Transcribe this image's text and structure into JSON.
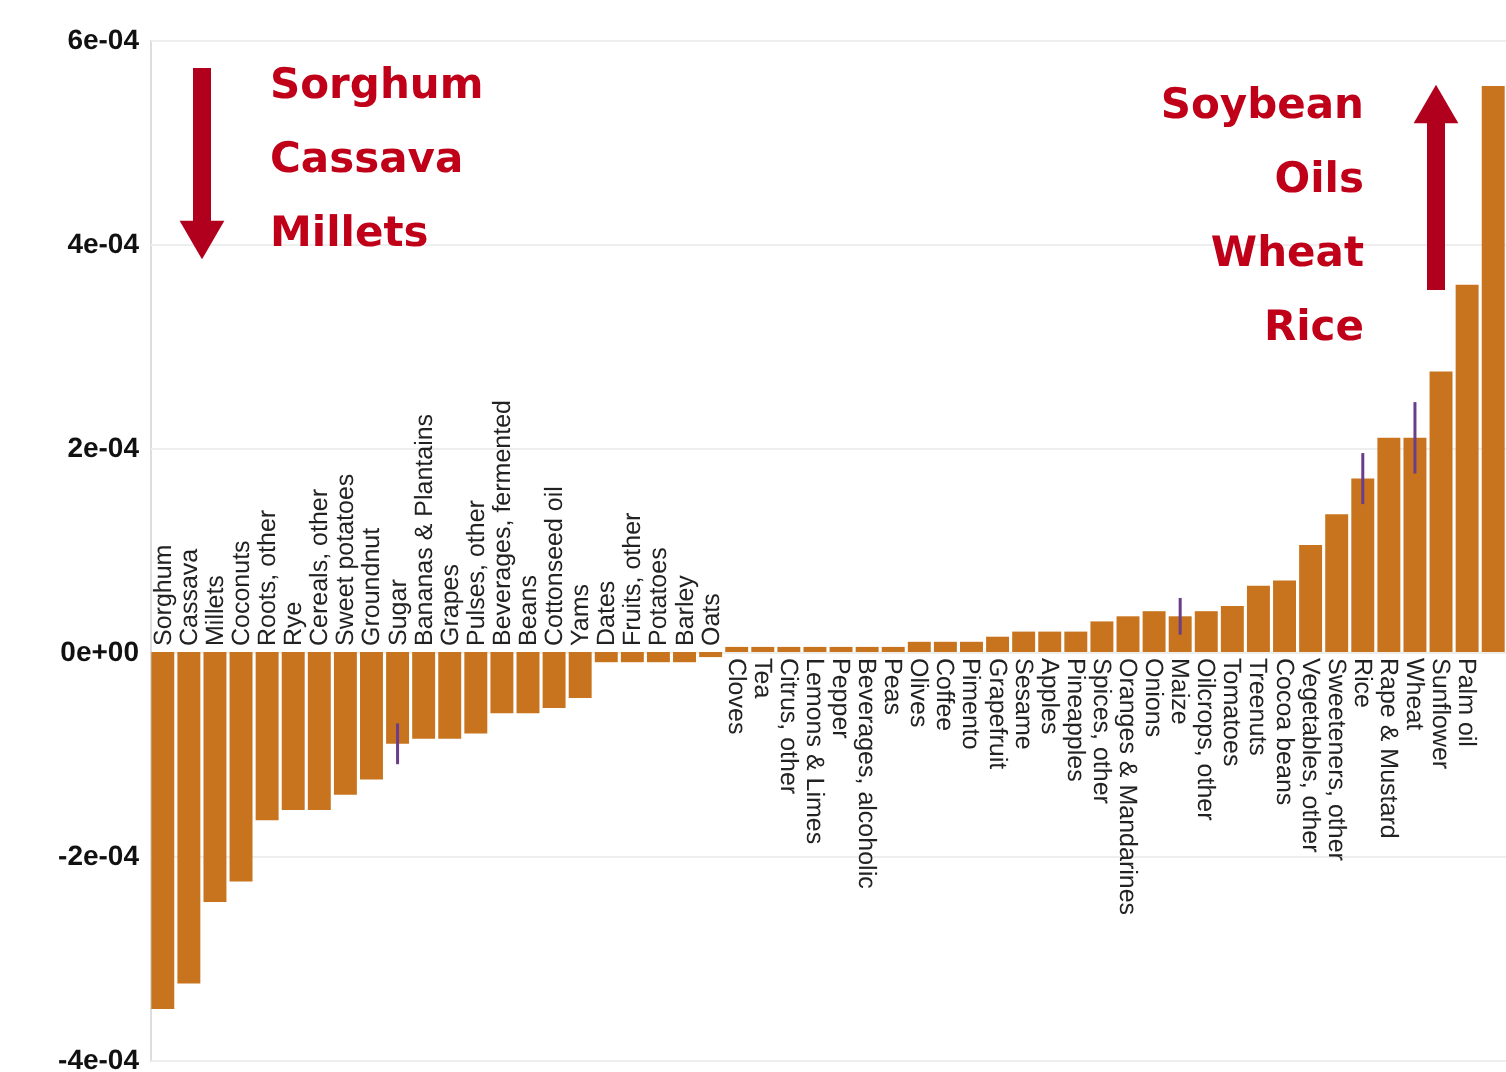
{
  "chart_data": {
    "type": "bar",
    "categories": [
      "Sorghum",
      "Cassava",
      "Millets",
      "Coconuts",
      "Roots, other",
      "Rye",
      "Cereals, other",
      "Sweet potatoes",
      "Groundnut",
      "Sugar",
      "Bananas & Plantains",
      "Grapes",
      "Pulses, other",
      "Beverages, fermented",
      "Beans",
      "Cottonseed oil",
      "Yams",
      "Dates",
      "Fruits, other",
      "Potatoes",
      "Barley",
      "Oats",
      "Cloves",
      "Tea",
      "Citrus, other",
      "Lemons & Limes",
      "Pepper",
      "Beverages, alcoholic",
      "Peas",
      "Olives",
      "Coffee",
      "Pimento",
      "Grapefruit",
      "Sesame",
      "Apples",
      "Pineapples",
      "Spices, other",
      "Oranges & Mandarines",
      "Onions",
      "Maize",
      "Oilcrops, other",
      "Tomatoes",
      "Treenuts",
      "Cocoa beans",
      "Vegetables, other",
      "Sweeteners, other",
      "Rice",
      "Rape & Mustard",
      "Wheat",
      "Sunflower",
      "Palm oil",
      null
    ],
    "values": [
      -0.00035,
      -0.000325,
      -0.000245,
      -0.000225,
      -0.000165,
      -0.000155,
      -0.000155,
      -0.00014,
      -0.000125,
      -9e-05,
      -8.5e-05,
      -8.5e-05,
      -8e-05,
      -6e-05,
      -6e-05,
      -5.5e-05,
      -4.5e-05,
      -1e-05,
      -1e-05,
      -1e-05,
      -1e-05,
      -5e-06,
      5e-06,
      5e-06,
      5e-06,
      5e-06,
      5e-06,
      5e-06,
      5e-06,
      1e-05,
      1e-05,
      1e-05,
      1.5e-05,
      2e-05,
      2e-05,
      2e-05,
      3e-05,
      3.5e-05,
      4e-05,
      3.5e-05,
      4e-05,
      4.5e-05,
      6.5e-05,
      7e-05,
      0.000105,
      0.000135,
      0.00017,
      0.00021,
      0.00021,
      0.000275,
      0.00036,
      0.000555
    ],
    "errors": [
      null,
      null,
      null,
      null,
      null,
      null,
      null,
      null,
      null,
      2e-05,
      null,
      null,
      null,
      null,
      null,
      null,
      null,
      null,
      null,
      null,
      null,
      null,
      null,
      null,
      null,
      null,
      null,
      null,
      null,
      null,
      null,
      null,
      null,
      null,
      null,
      null,
      null,
      null,
      null,
      1.8e-05,
      null,
      null,
      null,
      null,
      null,
      null,
      2.5e-05,
      null,
      3.5e-05,
      null,
      null,
      null
    ],
    "color": "#c8741e",
    "ylim": [
      -0.0004,
      0.0006
    ],
    "yticks": [
      {
        "value": -0.0004,
        "label": "-4e-04"
      },
      {
        "value": -0.0002,
        "label": "-2e-04"
      },
      {
        "value": 0,
        "label": "0e+00"
      },
      {
        "value": 0.0002,
        "label": "2e-04"
      },
      {
        "value": 0.0004,
        "label": "4e-04"
      },
      {
        "value": 0.0006,
        "label": "6e-04"
      }
    ],
    "grid": "y",
    "tick_labels": "y",
    "annotations": [
      "Sorghum\nCassava\nMillets",
      "Soybean\nOils\nWheat\nRice"
    ]
  }
}
